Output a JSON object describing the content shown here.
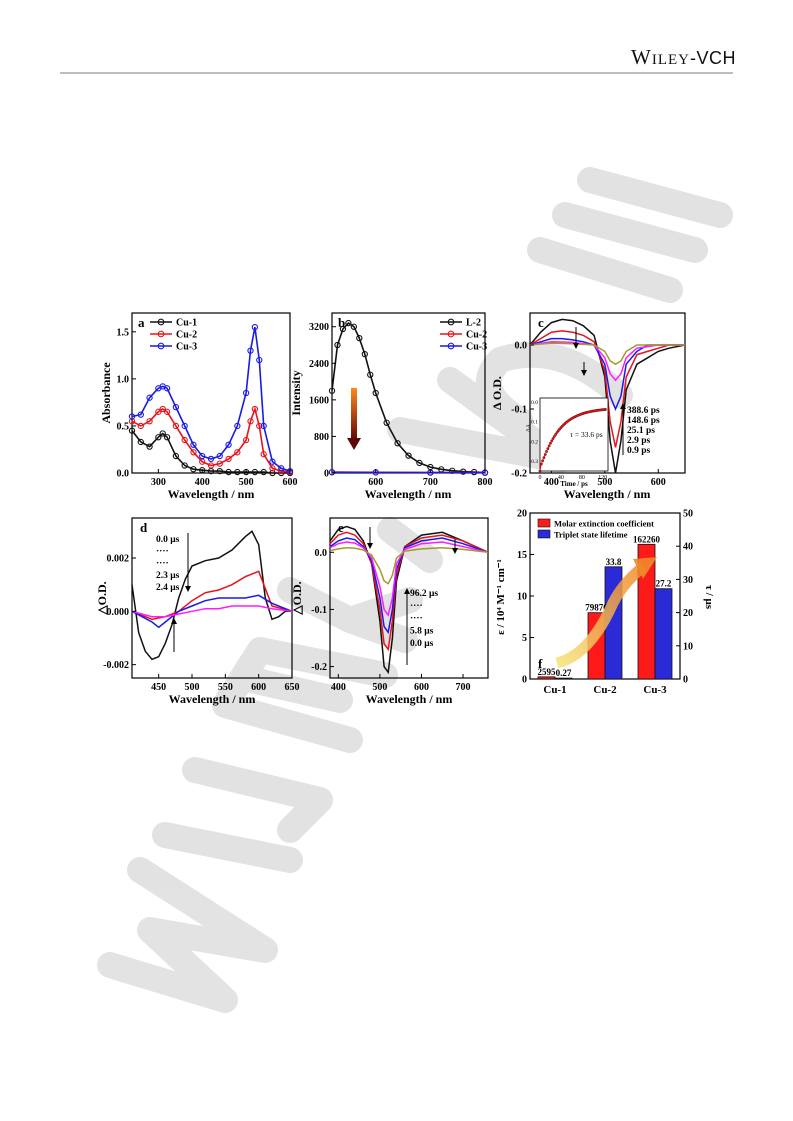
{
  "header": {
    "brand_main": "Wiley",
    "brand_suffix": "-VCH"
  },
  "watermark": {
    "text": "WILEY-VCH",
    "color": "#e0e0e0"
  },
  "colors": {
    "black": "#111111",
    "red": "#e8131b",
    "blue": "#1a1ae6",
    "magenta": "#ff1aff",
    "olive": "#a49a2a"
  },
  "panels": {
    "a": {
      "label": "a",
      "xlabel": "Wavelength / nm",
      "ylabel": "Absorbance",
      "xticks": [
        "300",
        "400",
        "500",
        "600"
      ],
      "yticks": [
        "0.0",
        "0.5",
        "1.0",
        "1.5"
      ],
      "legend": [
        "Cu-1",
        "Cu-2",
        "Cu-3"
      ]
    },
    "b": {
      "label": "b",
      "xlabel": "Wavelength / nm",
      "ylabel": "Intensity",
      "xticks": [
        "600",
        "700",
        "800"
      ],
      "yticks": [
        "0",
        "800",
        "1600",
        "2400",
        "3200"
      ],
      "legend": [
        "L-2",
        "Cu-2",
        "Cu-3"
      ]
    },
    "c": {
      "label": "c",
      "xlabel": "Wavelength / nm",
      "ylabel": "Δ O.D.",
      "xticks": [
        "400",
        "500",
        "600"
      ],
      "yticks": [
        "0.0",
        "-0.1",
        "-0.2"
      ],
      "times": [
        "388.6 ps",
        "148.6 ps",
        "25.1  ps",
        "2.9   ps",
        "0.9   ps"
      ],
      "inset": {
        "annotation": "τ = 33.6 ps",
        "xlabel": "Time / ps",
        "ylabel": "ΔA",
        "xticks": [
          "0",
          "40",
          "80",
          "120"
        ],
        "yticks": [
          "0.0",
          "-0.1",
          "-0.2",
          "-0.3"
        ]
      }
    },
    "d": {
      "label": "d",
      "xlabel": "Wavelength / nm",
      "ylabel": "△O.D.",
      "xticks": [
        "450",
        "500",
        "550",
        "600",
        "650"
      ],
      "yticks": [
        "0.002",
        "0.000",
        "-0.002"
      ],
      "times": [
        "0.0 μs",
        "····",
        "····",
        "2.3 μs",
        "2.4 μs"
      ]
    },
    "e": {
      "label": "e",
      "xlabel": "Wavelength / nm",
      "ylabel": "△O.D.",
      "xticks": [
        "400",
        "500",
        "600",
        "700"
      ],
      "yticks": [
        "0.0",
        "-0.1",
        "-0.2"
      ],
      "times": [
        "96.2 μs",
        "····",
        "····",
        "5.8 μs",
        "0.0 μs"
      ]
    },
    "f": {
      "label": "f",
      "ylabel_left": "ε / 10⁴ M⁻¹ cm⁻¹",
      "ylabel_right": "τ / μs",
      "yticks_left": [
        "0",
        "5",
        "10",
        "15",
        "20"
      ],
      "yticks_right": [
        "0",
        "10",
        "20",
        "30",
        "40",
        "50"
      ],
      "legend": [
        "Molar extinction coefficient",
        "Triplet state lifetime"
      ]
    }
  },
  "chart_data": [
    {
      "type": "line",
      "panel": "a",
      "xlabel": "Wavelength / nm",
      "ylabel": "Absorbance",
      "xlim": [
        240,
        600
      ],
      "ylim": [
        0,
        1.7
      ],
      "series": [
        {
          "name": "Cu-1",
          "color": "#111111",
          "x": [
            240,
            260,
            280,
            300,
            310,
            320,
            340,
            360,
            380,
            400,
            420,
            440,
            460,
            480,
            500,
            520,
            540,
            560,
            580,
            600
          ],
          "y": [
            0.45,
            0.33,
            0.28,
            0.38,
            0.42,
            0.38,
            0.18,
            0.08,
            0.04,
            0.03,
            0.02,
            0.02,
            0.01,
            0.01,
            0.01,
            0.01,
            0.01,
            0.0,
            0.0,
            0.0
          ]
        },
        {
          "name": "Cu-2",
          "color": "#e8131b",
          "x": [
            240,
            260,
            280,
            300,
            310,
            320,
            340,
            360,
            380,
            400,
            420,
            440,
            460,
            480,
            500,
            510,
            520,
            530,
            540,
            560,
            580,
            600
          ],
          "y": [
            0.55,
            0.5,
            0.55,
            0.65,
            0.68,
            0.65,
            0.5,
            0.35,
            0.22,
            0.12,
            0.08,
            0.1,
            0.15,
            0.22,
            0.35,
            0.55,
            0.68,
            0.5,
            0.2,
            0.05,
            0.02,
            0.01
          ]
        },
        {
          "name": "Cu-3",
          "color": "#1a1ae6",
          "x": [
            240,
            260,
            280,
            300,
            310,
            320,
            340,
            360,
            380,
            400,
            420,
            440,
            460,
            480,
            500,
            510,
            520,
            530,
            540,
            560,
            580,
            600
          ],
          "y": [
            0.6,
            0.62,
            0.8,
            0.9,
            0.92,
            0.9,
            0.7,
            0.5,
            0.3,
            0.18,
            0.15,
            0.18,
            0.3,
            0.5,
            0.85,
            1.3,
            1.55,
            1.2,
            0.5,
            0.12,
            0.05,
            0.02
          ]
        }
      ]
    },
    {
      "type": "line",
      "panel": "b",
      "xlabel": "Wavelength / nm",
      "ylabel": "Intensity",
      "xlim": [
        520,
        800
      ],
      "ylim": [
        0,
        3500
      ],
      "series": [
        {
          "name": "L-2",
          "color": "#111111",
          "x": [
            520,
            530,
            540,
            550,
            560,
            570,
            580,
            590,
            600,
            620,
            640,
            660,
            680,
            700,
            720,
            740,
            760,
            780,
            800
          ],
          "y": [
            1800,
            2800,
            3150,
            3280,
            3200,
            2950,
            2600,
            2150,
            1750,
            1100,
            650,
            380,
            220,
            130,
            80,
            50,
            30,
            20,
            10
          ]
        },
        {
          "name": "Cu-2",
          "color": "#e8131b",
          "x": [
            520,
            600,
            700,
            800
          ],
          "y": [
            20,
            15,
            10,
            8
          ]
        },
        {
          "name": "Cu-3",
          "color": "#1a1ae6",
          "x": [
            520,
            600,
            700,
            800
          ],
          "y": [
            15,
            12,
            8,
            6
          ]
        }
      ]
    },
    {
      "type": "line",
      "panel": "c",
      "xlabel": "Wavelength / nm",
      "ylabel": "Δ O.D.",
      "xlim": [
        360,
        650
      ],
      "ylim": [
        -0.2,
        0.05
      ],
      "series": [
        {
          "name": "0.9 ps",
          "color": "#111111",
          "x": [
            360,
            380,
            400,
            420,
            440,
            460,
            480,
            500,
            510,
            520,
            530,
            540,
            560,
            580,
            600,
            620,
            650
          ],
          "y": [
            0.0,
            0.02,
            0.035,
            0.04,
            0.038,
            0.03,
            0.015,
            -0.05,
            -0.15,
            -0.2,
            -0.15,
            -0.07,
            -0.03,
            -0.02,
            -0.01,
            -0.005,
            0.0
          ]
        },
        {
          "name": "2.9 ps",
          "color": "#e8131b",
          "x": [
            360,
            380,
            400,
            420,
            440,
            460,
            480,
            500,
            510,
            520,
            530,
            540,
            560,
            580,
            600,
            620,
            650
          ],
          "y": [
            0.0,
            0.01,
            0.02,
            0.022,
            0.02,
            0.015,
            0.005,
            -0.04,
            -0.12,
            -0.16,
            -0.12,
            -0.05,
            -0.015,
            -0.01,
            -0.005,
            0.0,
            0.0
          ]
        },
        {
          "name": "25.1 ps",
          "color": "#1a1ae6",
          "x": [
            360,
            380,
            400,
            420,
            440,
            460,
            480,
            500,
            510,
            520,
            530,
            540,
            560,
            580,
            600,
            620,
            650
          ],
          "y": [
            0.0,
            0.005,
            0.01,
            0.01,
            0.008,
            0.005,
            0.0,
            -0.03,
            -0.08,
            -0.1,
            -0.08,
            -0.03,
            -0.01,
            0.0,
            0.0,
            0.0,
            0.0
          ]
        },
        {
          "name": "148.6 ps",
          "color": "#ff1aff",
          "x": [
            360,
            400,
            440,
            480,
            500,
            510,
            520,
            530,
            540,
            560,
            600,
            650
          ],
          "y": [
            0.0,
            0.005,
            0.004,
            0.0,
            -0.02,
            -0.045,
            -0.055,
            -0.045,
            -0.02,
            -0.005,
            0.0,
            0.0
          ]
        },
        {
          "name": "388.6 ps",
          "color": "#a49a2a",
          "x": [
            360,
            400,
            440,
            480,
            500,
            510,
            520,
            530,
            540,
            560,
            600,
            650
          ],
          "y": [
            0.0,
            0.003,
            0.002,
            0.0,
            -0.01,
            -0.025,
            -0.03,
            -0.025,
            -0.01,
            0.0,
            0.0,
            0.0
          ]
        }
      ]
    },
    {
      "type": "line",
      "panel": "d",
      "xlabel": "Wavelength / nm",
      "ylabel": "△O.D.",
      "xlim": [
        410,
        650
      ],
      "ylim": [
        -0.0025,
        0.0035
      ],
      "series": [
        {
          "name": "0.0 μs",
          "color": "#111111",
          "x": [
            410,
            420,
            430,
            440,
            450,
            460,
            470,
            480,
            490,
            500,
            520,
            540,
            560,
            580,
            590,
            600,
            610,
            620,
            630,
            640,
            650
          ],
          "y": [
            0.001,
            -0.0008,
            -0.0015,
            -0.0018,
            -0.0017,
            -0.0012,
            -0.0005,
            0.0005,
            0.0012,
            0.0017,
            0.0019,
            0.002,
            0.0023,
            0.0028,
            0.003,
            0.0025,
            0.0005,
            -0.0003,
            -0.0002,
            0.0,
            0.0
          ]
        },
        {
          "name": "red",
          "color": "#e8131b",
          "x": [
            410,
            440,
            460,
            480,
            500,
            520,
            540,
            560,
            580,
            600,
            620,
            650
          ],
          "y": [
            0.0,
            -0.0003,
            -0.0002,
            0.0,
            0.0004,
            0.0007,
            0.0008,
            0.001,
            0.0013,
            0.0015,
            0.0002,
            0.0
          ]
        },
        {
          "name": "2.3 μs",
          "color": "#1a1ae6",
          "x": [
            410,
            440,
            450,
            460,
            480,
            500,
            520,
            540,
            560,
            580,
            600,
            620,
            650
          ],
          "y": [
            0.0,
            -0.0004,
            -0.0006,
            -0.0004,
            0.0,
            0.0002,
            0.0004,
            0.0005,
            0.0005,
            0.0005,
            0.0006,
            0.0003,
            0.0
          ]
        },
        {
          "name": "2.4 μs",
          "color": "#ff1aff",
          "x": [
            410,
            440,
            460,
            480,
            500,
            520,
            540,
            560,
            580,
            600,
            620,
            650
          ],
          "y": [
            0.0,
            -0.0002,
            -0.0002,
            -0.0001,
            0.0,
            0.0001,
            0.0001,
            0.0002,
            0.0002,
            0.0002,
            0.0001,
            0.0
          ]
        }
      ]
    },
    {
      "type": "line",
      "panel": "e",
      "xlabel": "Wavelength / nm",
      "ylabel": "△O.D.",
      "xlim": [
        380,
        760
      ],
      "ylim": [
        -0.22,
        0.06
      ],
      "series": [
        {
          "name": "0.0 μs",
          "color": "#111111",
          "x": [
            380,
            400,
            420,
            440,
            460,
            480,
            500,
            510,
            520,
            530,
            540,
            560,
            600,
            650,
            700,
            760
          ],
          "y": [
            0.02,
            0.04,
            0.045,
            0.04,
            0.02,
            -0.02,
            -0.12,
            -0.2,
            -0.21,
            -0.15,
            -0.05,
            0.01,
            0.03,
            0.035,
            0.02,
            0.0
          ]
        },
        {
          "name": "red",
          "color": "#e8131b",
          "x": [
            380,
            400,
            420,
            440,
            460,
            480,
            500,
            510,
            520,
            530,
            540,
            560,
            600,
            650,
            700,
            760
          ],
          "y": [
            0.015,
            0.03,
            0.035,
            0.03,
            0.015,
            -0.02,
            -0.1,
            -0.16,
            -0.17,
            -0.12,
            -0.04,
            0.01,
            0.025,
            0.03,
            0.02,
            0.0
          ]
        },
        {
          "name": "blue",
          "color": "#1a1ae6",
          "x": [
            380,
            400,
            420,
            440,
            460,
            480,
            500,
            510,
            520,
            530,
            540,
            560,
            600,
            650,
            700,
            760
          ],
          "y": [
            0.01,
            0.02,
            0.025,
            0.022,
            0.01,
            -0.015,
            -0.08,
            -0.13,
            -0.14,
            -0.1,
            -0.03,
            0.008,
            0.02,
            0.025,
            0.015,
            0.0
          ]
        },
        {
          "name": "magenta",
          "color": "#ff1aff",
          "x": [
            380,
            400,
            420,
            440,
            460,
            480,
            500,
            510,
            520,
            530,
            540,
            560,
            600,
            650,
            700,
            760
          ],
          "y": [
            0.008,
            0.015,
            0.018,
            0.016,
            0.008,
            -0.01,
            -0.06,
            -0.1,
            -0.11,
            -0.08,
            -0.02,
            0.005,
            0.015,
            0.018,
            0.01,
            0.0
          ]
        },
        {
          "name": "96.2 μs",
          "color": "#a49a2a",
          "x": [
            380,
            400,
            420,
            440,
            460,
            480,
            500,
            510,
            520,
            530,
            540,
            560,
            600,
            650,
            700,
            760
          ],
          "y": [
            0.003,
            0.006,
            0.008,
            0.007,
            0.004,
            -0.005,
            -0.03,
            -0.05,
            -0.055,
            -0.04,
            -0.01,
            0.002,
            0.006,
            0.008,
            0.005,
            0.0
          ]
        }
      ]
    },
    {
      "type": "bar",
      "panel": "f",
      "categories": [
        "Cu-1",
        "Cu-2",
        "Cu-3"
      ],
      "ylim_left": [
        0,
        20
      ],
      "ylim_right": [
        0,
        50
      ],
      "series": [
        {
          "name": "Molar extinction coefficient",
          "axis": "left",
          "color": "#ff1a1a",
          "values": [
            0.2595,
            7.9876,
            16.226
          ],
          "labels": [
            "2595",
            "79876",
            "162260"
          ]
        },
        {
          "name": "Triplet state lifetime",
          "axis": "right",
          "color": "#2a2ad6",
          "values": [
            0.27,
            33.8,
            27.2
          ],
          "labels": [
            "0.27",
            "33.8",
            "27.2"
          ]
        }
      ]
    }
  ]
}
